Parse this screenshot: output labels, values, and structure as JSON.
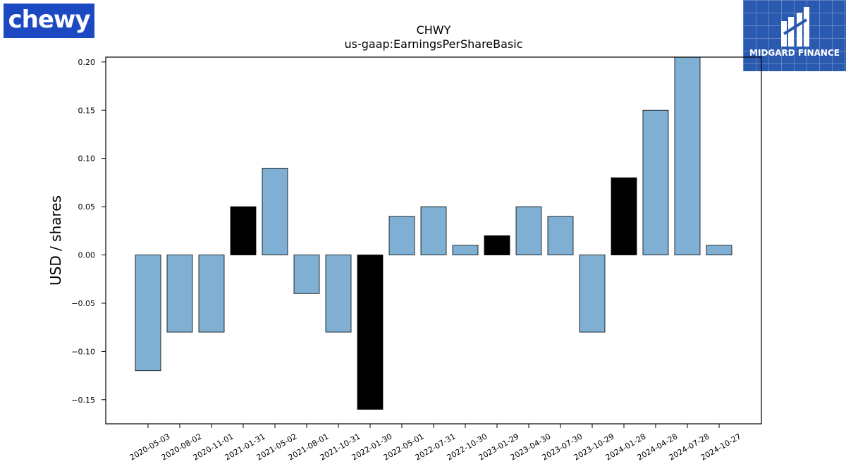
{
  "logos": {
    "company": "chewy",
    "publisher": "MIDGARD FINANCE"
  },
  "chart_data": {
    "type": "bar",
    "title": "CHWY",
    "subtitle": "us-gaap:EarningsPerShareBasic",
    "xlabel": "",
    "ylabel": "USD / shares",
    "ylim": [
      -0.175,
      0.205
    ],
    "yticks": [
      -0.15,
      -0.1,
      -0.05,
      0.0,
      0.05,
      0.1,
      0.15,
      0.2
    ],
    "ytick_labels": [
      "−0.15",
      "−0.10",
      "−0.05",
      "0.00",
      "0.05",
      "0.10",
      "0.15",
      "0.20"
    ],
    "grid": false,
    "categories": [
      "2020-05-03",
      "2020-08-02",
      "2020-11-01",
      "2021-01-31",
      "2021-05-02",
      "2021-08-01",
      "2021-10-31",
      "2022-01-30",
      "2022-05-01",
      "2022-07-31",
      "2022-10-30",
      "2023-01-29",
      "2023-04-30",
      "2023-07-30",
      "2023-10-29",
      "2024-01-28",
      "2024-04-28",
      "2024-07-28",
      "2024-10-27"
    ],
    "values": [
      -0.12,
      -0.08,
      -0.08,
      0.05,
      0.09,
      -0.04,
      -0.08,
      -0.16,
      0.04,
      0.05,
      0.01,
      0.02,
      0.05,
      0.04,
      -0.08,
      0.08,
      0.15,
      0.21,
      0.01
    ],
    "highlighted": [
      false,
      false,
      false,
      true,
      false,
      false,
      false,
      true,
      false,
      false,
      false,
      true,
      false,
      false,
      false,
      true,
      false,
      false,
      false
    ],
    "colors": {
      "bar": "#7fb0d3",
      "highlight": "#000000",
      "edge": "#000000"
    }
  }
}
